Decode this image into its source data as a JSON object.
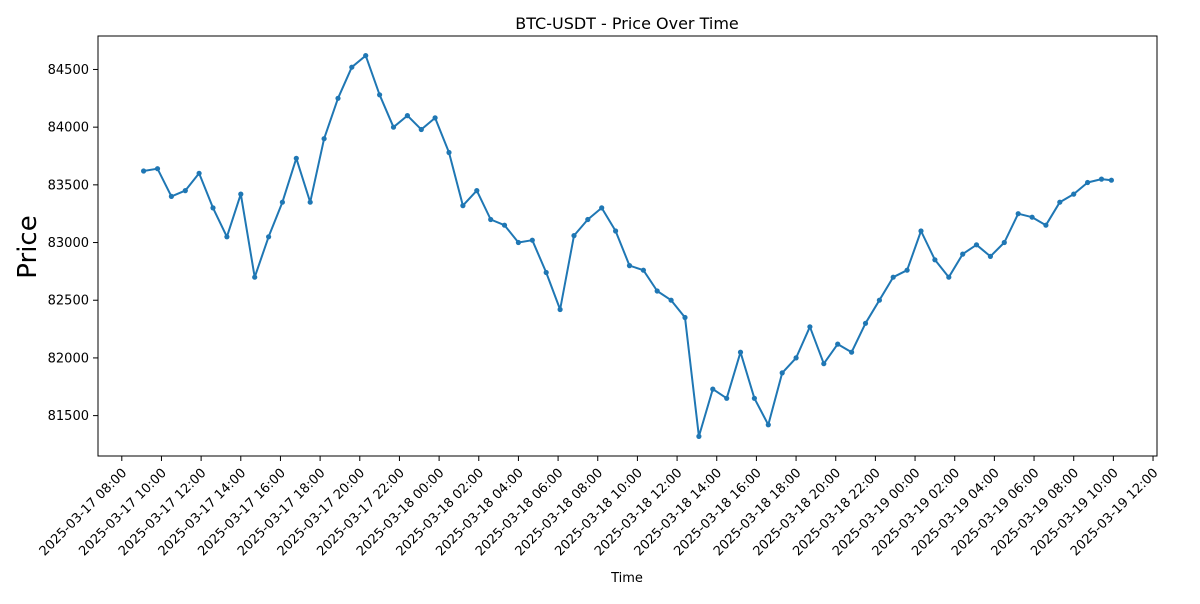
{
  "chart_data": {
    "type": "line",
    "title": "BTC-USDT - Price Over Time",
    "xlabel": "Time",
    "ylabel": "Price",
    "xlim": [
      "2025-03-17 06:48",
      "2025-03-19 12:12"
    ],
    "ylim": [
      81150,
      84790
    ],
    "grid": false,
    "legend": "none",
    "line_color": "#1f77b4",
    "marker": "circle",
    "x_ticks": [
      "2025-03-17 08:00",
      "2025-03-17 10:00",
      "2025-03-17 12:00",
      "2025-03-17 14:00",
      "2025-03-17 16:00",
      "2025-03-17 18:00",
      "2025-03-17 20:00",
      "2025-03-17 22:00",
      "2025-03-18 00:00",
      "2025-03-18 02:00",
      "2025-03-18 04:00",
      "2025-03-18 06:00",
      "2025-03-18 08:00",
      "2025-03-18 10:00",
      "2025-03-18 12:00",
      "2025-03-18 14:00",
      "2025-03-18 16:00",
      "2025-03-18 18:00",
      "2025-03-18 20:00",
      "2025-03-18 22:00",
      "2025-03-19 00:00",
      "2025-03-19 02:00",
      "2025-03-19 04:00",
      "2025-03-19 06:00",
      "2025-03-19 08:00",
      "2025-03-19 10:00",
      "2025-03-19 12:00"
    ],
    "y_ticks": [
      81500,
      82000,
      82500,
      83000,
      83500,
      84000,
      84500
    ],
    "x": [
      "2025-03-17 09:06",
      "2025-03-17 09:48",
      "2025-03-17 10:30",
      "2025-03-17 11:12",
      "2025-03-17 11:54",
      "2025-03-17 12:36",
      "2025-03-17 13:18",
      "2025-03-17 14:00",
      "2025-03-17 14:42",
      "2025-03-17 15:24",
      "2025-03-17 16:06",
      "2025-03-17 16:48",
      "2025-03-17 17:30",
      "2025-03-17 18:12",
      "2025-03-17 18:54",
      "2025-03-17 19:36",
      "2025-03-17 20:18",
      "2025-03-17 21:00",
      "2025-03-17 21:42",
      "2025-03-17 22:24",
      "2025-03-17 23:06",
      "2025-03-17 23:48",
      "2025-03-18 00:30",
      "2025-03-18 01:12",
      "2025-03-18 01:54",
      "2025-03-18 02:36",
      "2025-03-18 03:18",
      "2025-03-18 04:00",
      "2025-03-18 04:42",
      "2025-03-18 05:24",
      "2025-03-18 06:06",
      "2025-03-18 06:48",
      "2025-03-18 07:30",
      "2025-03-18 08:12",
      "2025-03-18 08:54",
      "2025-03-18 09:36",
      "2025-03-18 10:18",
      "2025-03-18 11:00",
      "2025-03-18 11:42",
      "2025-03-18 12:24",
      "2025-03-18 13:06",
      "2025-03-18 13:48",
      "2025-03-18 14:30",
      "2025-03-18 15:12",
      "2025-03-18 15:54",
      "2025-03-18 16:36",
      "2025-03-18 17:18",
      "2025-03-18 18:00",
      "2025-03-18 18:42",
      "2025-03-18 19:24",
      "2025-03-18 20:06",
      "2025-03-18 20:48",
      "2025-03-18 21:30",
      "2025-03-18 22:12",
      "2025-03-18 22:54",
      "2025-03-18 23:36",
      "2025-03-19 00:18",
      "2025-03-19 01:00",
      "2025-03-19 01:42",
      "2025-03-19 02:24",
      "2025-03-19 03:06",
      "2025-03-19 03:48",
      "2025-03-19 04:30",
      "2025-03-19 05:12",
      "2025-03-19 05:54",
      "2025-03-19 06:36",
      "2025-03-19 07:18",
      "2025-03-19 08:00",
      "2025-03-19 08:42",
      "2025-03-19 09:24",
      "2025-03-19 09:54"
    ],
    "values": [
      83620,
      83640,
      83400,
      83450,
      83600,
      83300,
      83050,
      83420,
      82700,
      83050,
      83350,
      83730,
      83350,
      83900,
      84250,
      84520,
      84620,
      84280,
      84000,
      84100,
      83980,
      84080,
      83780,
      83320,
      83450,
      83200,
      83150,
      83000,
      83020,
      82740,
      82420,
      83060,
      83200,
      83300,
      83100,
      82800,
      82760,
      82580,
      82500,
      82350,
      81320,
      81730,
      81650,
      82050,
      81650,
      81420,
      81870,
      82000,
      82270,
      81950,
      82120,
      82050,
      82300,
      82500,
      82700,
      82760,
      83100,
      82850,
      82700,
      82900,
      82980,
      82880,
      83000,
      83250,
      83220,
      83150,
      83350,
      83420,
      83520,
      83550,
      83540
    ]
  }
}
